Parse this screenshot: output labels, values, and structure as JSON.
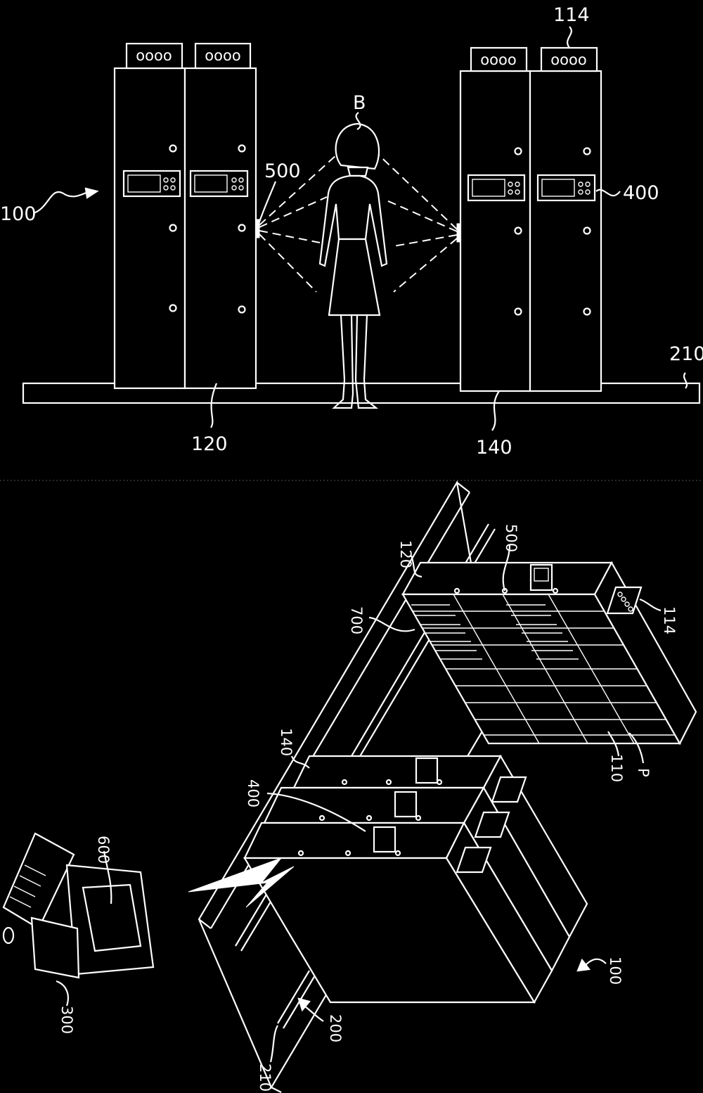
{
  "figure_top": {
    "labels": {
      "frame_100": "100",
      "unit_120": "120",
      "unit_140": "140",
      "person_b": "B",
      "sensor_500": "500",
      "display_400": "400",
      "connector_114": "114",
      "rail_210": "210"
    },
    "connector_text": "oooo"
  },
  "figure_bottom": {
    "labels": {
      "unit_120": "120",
      "sensor_500": "500",
      "code_700": "700",
      "connector_114": "114",
      "unit_140": "140",
      "display_400": "400",
      "drawer_110": "110",
      "part_p": "P",
      "terminal_600": "600",
      "pc_300": "300",
      "frame_100": "100",
      "track_200": "200",
      "rail_210": "210"
    }
  },
  "colors": {
    "background": "#000000",
    "line": "#ffffff"
  }
}
